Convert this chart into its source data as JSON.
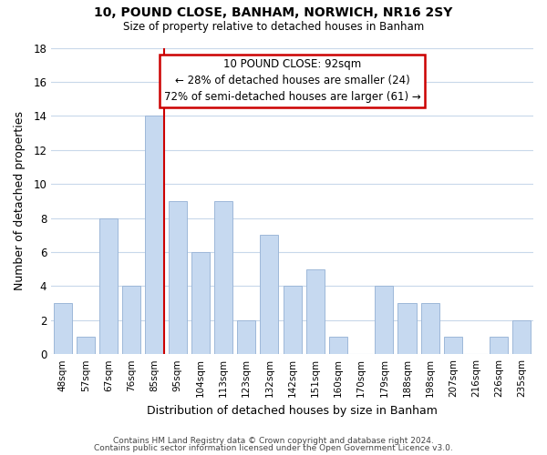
{
  "title1": "10, POUND CLOSE, BANHAM, NORWICH, NR16 2SY",
  "title2": "Size of property relative to detached houses in Banham",
  "xlabel": "Distribution of detached houses by size in Banham",
  "ylabel": "Number of detached properties",
  "categories": [
    "48sqm",
    "57sqm",
    "67sqm",
    "76sqm",
    "85sqm",
    "95sqm",
    "104sqm",
    "113sqm",
    "123sqm",
    "132sqm",
    "142sqm",
    "151sqm",
    "160sqm",
    "170sqm",
    "179sqm",
    "188sqm",
    "198sqm",
    "207sqm",
    "216sqm",
    "226sqm",
    "235sqm"
  ],
  "values": [
    3,
    1,
    8,
    4,
    14,
    9,
    6,
    9,
    2,
    7,
    4,
    5,
    1,
    0,
    4,
    3,
    3,
    1,
    0,
    1,
    2
  ],
  "bar_color": "#c6d9f0",
  "bar_edge_color": "#9db8d9",
  "highlight_line_color": "#cc0000",
  "red_line_index": 4,
  "ylim": [
    0,
    18
  ],
  "yticks": [
    0,
    2,
    4,
    6,
    8,
    10,
    12,
    14,
    16,
    18
  ],
  "annotation_title": "10 POUND CLOSE: 92sqm",
  "annotation_line1": "← 28% of detached houses are smaller (24)",
  "annotation_line2": "72% of semi-detached houses are larger (61) →",
  "annotation_box_color": "#ffffff",
  "annotation_box_edge": "#cc0000",
  "footer1": "Contains HM Land Registry data © Crown copyright and database right 2024.",
  "footer2": "Contains public sector information licensed under the Open Government Licence v3.0.",
  "background_color": "#ffffff",
  "grid_color": "#c8d8ea"
}
